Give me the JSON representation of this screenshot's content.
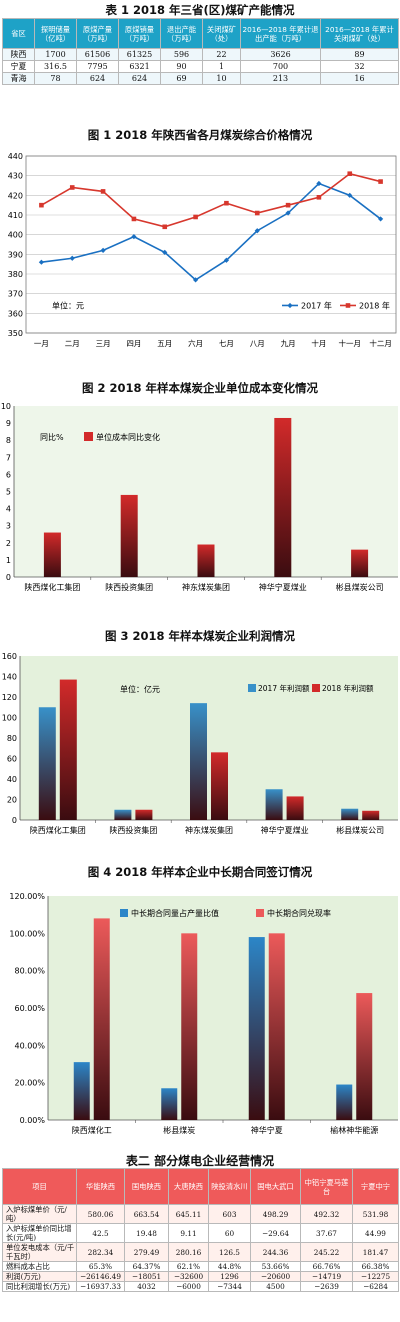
{
  "table1": {
    "title": "表 1  2018 年三省(区)煤矿产能情况",
    "headers": [
      "省区",
      "探明储量（亿吨）",
      "原煤产量（万吨）",
      "原煤销量（万吨）",
      "退出产能（万吨）",
      "关闭煤矿（处）",
      "2016—2018 年累计退出产能（万吨）",
      "2016—2018 年累计关闭煤矿（处）"
    ],
    "rows": [
      [
        "陕西",
        "1700",
        "61506",
        "61325",
        "596",
        "22",
        "3626",
        "89"
      ],
      [
        "宁夏",
        "316.5",
        "7795",
        "6321",
        "90",
        "1",
        "700",
        "32"
      ],
      [
        "青海",
        "78",
        "624",
        "624",
        "69",
        "10",
        "213",
        "16"
      ]
    ]
  },
  "chart_data": [
    {
      "id": "fig1",
      "type": "line",
      "title": "图 1  2018 年陕西省各月煤炭综合价格情况",
      "unit_label": "单位：元",
      "categories": [
        "一月",
        "二月",
        "三月",
        "四月",
        "五月",
        "六月",
        "七月",
        "八月",
        "九月",
        "十月",
        "十一月",
        "十二月"
      ],
      "ylim": [
        350,
        440
      ],
      "yticks": [
        350,
        360,
        370,
        380,
        390,
        400,
        410,
        420,
        430,
        440
      ],
      "legend_position": "bottom-right",
      "series": [
        {
          "name": "2017 年",
          "color": "#1a70c2",
          "marker": "diamond",
          "values": [
            386,
            388,
            392,
            399,
            391,
            377,
            387,
            402,
            411,
            426,
            420,
            408
          ]
        },
        {
          "name": "2018 年",
          "color": "#d7372d",
          "marker": "square",
          "values": [
            415,
            424,
            422,
            408,
            404,
            409,
            416,
            411,
            415,
            419,
            431,
            427
          ]
        }
      ]
    },
    {
      "id": "fig2",
      "type": "bar",
      "title": "图 2  2018 年样本煤炭企业单位成本变化情况",
      "unit_label": "同比%",
      "categories": [
        "陕西煤化工集团",
        "陕西投资集团",
        "神东煤炭集团",
        "神华宁夏煤业",
        "彬县煤炭公司"
      ],
      "ylim": [
        0,
        10
      ],
      "yticks": [
        0,
        1,
        2,
        3,
        4,
        5,
        6,
        7,
        8,
        9,
        10
      ],
      "legend_position": "top-left",
      "background": "#eef6ea",
      "series": [
        {
          "name": "单位成本同比变化",
          "color": "#d22a2a",
          "values": [
            2.6,
            4.8,
            1.9,
            9.3,
            1.6
          ]
        }
      ]
    },
    {
      "id": "fig3",
      "type": "bar",
      "title": "图 3  2018 年样本煤炭企业利润情况",
      "unit_label": "单位：亿元",
      "categories": [
        "陕西煤化工集团",
        "陕西投资集团",
        "神东煤炭集团",
        "神华宁夏煤业",
        "彬县煤炭公司"
      ],
      "ylim": [
        0,
        160
      ],
      "yticks": [
        0,
        20,
        40,
        60,
        80,
        100,
        120,
        140,
        160
      ],
      "legend_position": "top-right",
      "background": "#e4f1dc",
      "series": [
        {
          "name": "2017 年利润额",
          "color": "#3891c9",
          "values": [
            110,
            10,
            114,
            30,
            11
          ]
        },
        {
          "name": "2018 年利润额",
          "color": "#d22a2a",
          "values": [
            137,
            10,
            66,
            23,
            9
          ]
        }
      ]
    },
    {
      "id": "fig4",
      "type": "bar",
      "title": "图 4  2018 年样本企业中长期合同签订情况",
      "categories": [
        "陕西煤化工",
        "彬县煤炭",
        "神华宁夏",
        "榆林神华能源"
      ],
      "ylim": [
        0,
        120
      ],
      "yticks": [
        "0.00%",
        "20.00%",
        "40.00%",
        "60.00%",
        "80.00%",
        "100.00%",
        "120.00%"
      ],
      "legend_position": "top",
      "background": "#e4f1dc",
      "series": [
        {
          "name": "中长期合同量占产量比值",
          "color": "#2c86c8",
          "values": [
            31,
            17,
            98,
            19
          ]
        },
        {
          "name": "中长期合同兑现率",
          "color": "#ec5a5a",
          "values": [
            108,
            100,
            100,
            68
          ]
        }
      ]
    }
  ],
  "table2": {
    "title": "表二  部分煤电企业经营情况",
    "headers": [
      "项目",
      "华能陕西",
      "国电陕西",
      "大唐陕西",
      "陕投清水川",
      "国电大武口",
      "中铝宁夏马莲台",
      "宁夏中宁"
    ],
    "rows": [
      [
        "入炉标煤单价（元/吨）",
        "580.06",
        "663.54",
        "645.11",
        "603",
        "498.29",
        "492.32",
        "531.98"
      ],
      [
        "入炉标煤单价同比增长(元/吨)",
        "42.5",
        "19.48",
        "9.11",
        "60",
        "−29.64",
        "37.67",
        "44.99"
      ],
      [
        "单位发电成本（元/千千瓦时）",
        "282.34",
        "279.49",
        "280.16",
        "126.5",
        "244.36",
        "245.22",
        "181.47"
      ],
      [
        "燃料成本占比",
        "65.3%",
        "64.37%",
        "62.1%",
        "44.8%",
        "53.66%",
        "66.76%",
        "66.38%"
      ],
      [
        "利润(万元)",
        "−26146.49",
        "−18051",
        "−32600",
        "1296",
        "−20600",
        "−14719",
        "−12275"
      ],
      [
        "同比利润增长(万元)",
        "−16937.33",
        "4032",
        "−6000",
        "−7344",
        "4500",
        "−2639",
        "−6284"
      ]
    ]
  }
}
